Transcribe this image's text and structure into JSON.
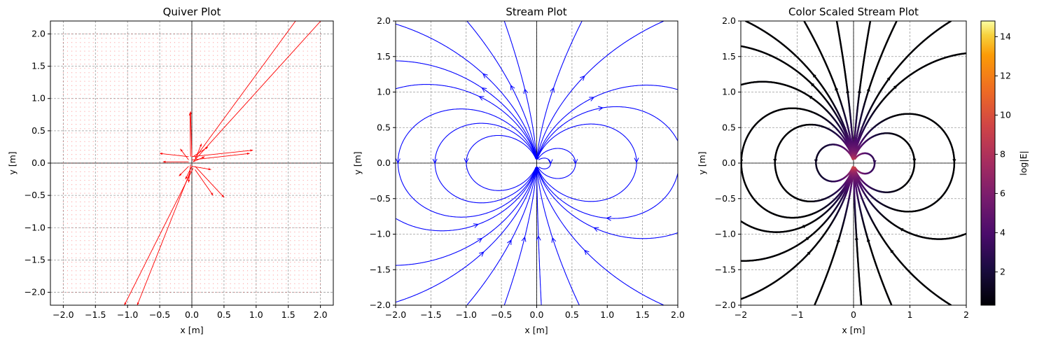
{
  "chart_data": [
    {
      "type": "quiver",
      "title": "Quiver Plot",
      "xlabel": "x [m]",
      "ylabel": "y [m]",
      "xlim": [
        -2.2,
        2.2
      ],
      "ylim": [
        -2.2,
        2.2
      ],
      "xticks": [
        "−2.0",
        "−1.5",
        "−1.0",
        "−0.5",
        "0.0",
        "0.5",
        "1.0",
        "1.5",
        "2.0"
      ],
      "yticks": [
        "−2.0",
        "−1.5",
        "−1.0",
        "−0.5",
        "0.0",
        "0.5",
        "1.0",
        "1.5",
        "2.0"
      ],
      "grid": true,
      "color": "#ff0000",
      "grid_range": [
        -2.0,
        2.0
      ],
      "field": "dipole at origin, moment along +y",
      "arrows": [
        {
          "x0": 0.05,
          "y0": 0.08,
          "x1": 1.65,
          "y1": 2.25
        },
        {
          "x0": 0.02,
          "y0": 0.02,
          "x1": 2.05,
          "y1": 2.25
        },
        {
          "x0": 0.02,
          "y0": -0.08,
          "x1": -1.05,
          "y1": -2.2
        },
        {
          "x0": -0.02,
          "y0": -0.12,
          "x1": -0.85,
          "y1": -2.2
        },
        {
          "x0": 0.0,
          "y0": 0.1,
          "x1": 0.95,
          "y1": 0.2
        },
        {
          "x0": 0.0,
          "y0": 0.05,
          "x1": 0.9,
          "y1": 0.15
        },
        {
          "x0": -0.05,
          "y0": 0.1,
          "x1": -0.5,
          "y1": 0.15
        },
        {
          "x0": -0.05,
          "y0": 0.02,
          "x1": -0.45,
          "y1": 0.02
        },
        {
          "x0": -0.02,
          "y0": 0.1,
          "x1": -0.03,
          "y1": 0.78
        },
        {
          "x0": 0.0,
          "y0": 0.1,
          "x1": -0.02,
          "y1": 0.8
        },
        {
          "x0": 0.05,
          "y0": -0.05,
          "x1": 0.5,
          "y1": -0.53
        },
        {
          "x0": 0.05,
          "y0": -0.1,
          "x1": 0.33,
          "y1": -0.5
        },
        {
          "x0": 0.02,
          "y0": 0.1,
          "x1": 0.25,
          "y1": 0.25
        },
        {
          "x0": 0.0,
          "y0": -0.05,
          "x1": 0.3,
          "y1": -0.1
        },
        {
          "x0": -0.05,
          "y0": -0.05,
          "x1": -0.2,
          "y1": -0.2
        },
        {
          "x0": -0.05,
          "y0": 0.05,
          "x1": -0.18,
          "y1": 0.22
        },
        {
          "x0": 0.0,
          "y0": -0.05,
          "x1": -0.1,
          "y1": -0.25
        },
        {
          "x0": 0.02,
          "y0": 0.02,
          "x1": 0.2,
          "y1": 0.1
        },
        {
          "x0": -0.02,
          "y0": -0.02,
          "x1": -0.05,
          "y1": -0.3
        },
        {
          "x0": 0.05,
          "y0": 0.05,
          "x1": 0.15,
          "y1": 0.3
        }
      ]
    },
    {
      "type": "streamplot",
      "title": "Stream Plot",
      "xlabel": "x [m]",
      "ylabel": "y [m]",
      "xlim": [
        -2.0,
        2.0
      ],
      "ylim": [
        -2.0,
        2.0
      ],
      "xticks": [
        "−2.0",
        "−1.5",
        "−1.0",
        "−0.5",
        "0.0",
        "0.5",
        "1.0",
        "1.5",
        "2.0"
      ],
      "yticks": [
        "−2.0",
        "−1.5",
        "−1.0",
        "−0.5",
        "0.0",
        "0.5",
        "1.0",
        "1.5",
        "2.0"
      ],
      "grid": true,
      "color": "#0000ff",
      "field": "dipole at origin, moment along +y"
    },
    {
      "type": "streamplot",
      "title": "Color Scaled Stream Plot",
      "xlabel": "x [m]",
      "ylabel": "y [m]",
      "xlim": [
        -2,
        2
      ],
      "ylim": [
        -2,
        2
      ],
      "xticks": [
        "−2",
        "−1",
        "0",
        "1",
        "2"
      ],
      "yticks": [
        "−2.0",
        "−1.5",
        "−1.0",
        "−0.5",
        "0.0",
        "0.5",
        "1.0",
        "1.5",
        "2.0"
      ],
      "grid": true,
      "colormap": "inferno",
      "colorbar": {
        "label": "log|E|",
        "range": [
          0.3,
          14.8
        ],
        "ticks": [
          "2",
          "4",
          "6",
          "8",
          "10",
          "12",
          "14"
        ],
        "tick_values": [
          2,
          4,
          6,
          8,
          10,
          12,
          14
        ]
      },
      "field": "dipole at origin, moment along +y"
    }
  ]
}
